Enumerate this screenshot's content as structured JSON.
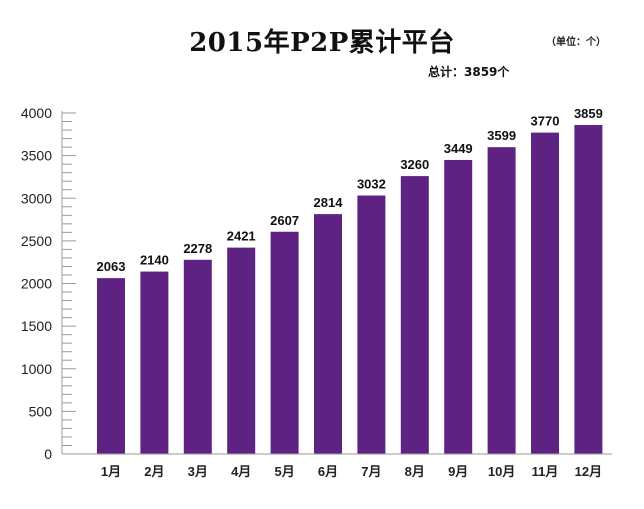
{
  "chart_data": {
    "type": "bar",
    "title": "2015年P2P累计平台",
    "unit_note": "（单位：个）",
    "total_note": "总计：3859个",
    "categories": [
      "1月",
      "2月",
      "3月",
      "4月",
      "5月",
      "6月",
      "7月",
      "8月",
      "9月",
      "10月",
      "11月",
      "12月"
    ],
    "values": [
      2063,
      2140,
      2278,
      2421,
      2607,
      2814,
      3032,
      3260,
      3449,
      3599,
      3770,
      3859
    ],
    "xlabel": "",
    "ylabel": "",
    "ylim": [
      0,
      4000
    ],
    "yticks": [
      0,
      500,
      1000,
      1500,
      2000,
      2500,
      3000,
      3500,
      4000
    ],
    "minor_tick_step": 100,
    "grid": false,
    "bar_color": "#5e2382",
    "value_labels": true
  }
}
